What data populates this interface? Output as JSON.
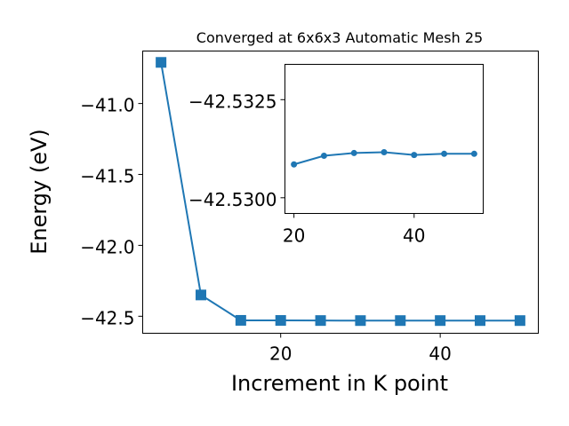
{
  "chart_data": [
    {
      "type": "line",
      "title": "Converged at 6x6x3 Automatic Mesh 25",
      "xlabel": "Increment in K point",
      "ylabel": "Energy (eV)",
      "xlim": [
        2.7,
        52.3
      ],
      "ylim": [
        -42.62,
        -40.63
      ],
      "x_ticks": [
        20,
        40
      ],
      "y_ticks": [
        -41.0,
        -41.5,
        -42.0,
        -42.5
      ],
      "x_tick_labels": [
        "20",
        "40"
      ],
      "y_tick_labels": [
        "−41.0",
        "−41.5",
        "−42.0",
        "−42.5"
      ],
      "marker": "square",
      "color": "#1f77b4",
      "grid": false,
      "x": [
        5,
        10,
        15,
        20,
        25,
        30,
        35,
        40,
        45,
        50
      ],
      "values": [
        -40.71,
        -42.35,
        -42.529,
        -42.5296,
        -42.5303,
        -42.5306,
        -42.5306,
        -42.5305,
        -42.5306,
        -42.5306
      ]
    },
    {
      "type": "line",
      "title": "",
      "xlabel": "",
      "ylabel": "",
      "xlim": [
        18.5,
        51.5
      ],
      "ylim": [
        -42.5296,
        -42.5334
      ],
      "x_ticks": [
        20,
        40
      ],
      "y_ticks": [
        -42.5325,
        -42.53
      ],
      "x_tick_labels": [
        "20",
        "40"
      ],
      "y_tick_labels": [
        "−42.5325",
        "−42.5300"
      ],
      "marker": "circle",
      "color": "#1f77b4",
      "grid": false,
      "x": [
        20,
        25,
        30,
        35,
        40,
        45,
        50
      ],
      "values": [
        -42.53085,
        -42.53107,
        -42.53114,
        -42.53116,
        -42.53109,
        -42.53112,
        -42.53112
      ]
    }
  ]
}
